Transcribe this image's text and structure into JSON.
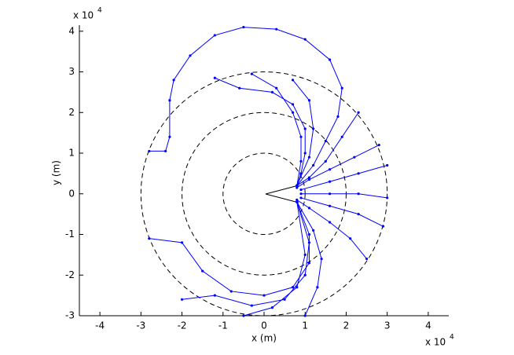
{
  "chart_data": {
    "type": "line",
    "x_label": "x (m)",
    "y_label": "y (m)",
    "x_multiplier": {
      "base": "x 10",
      "exponent": "4"
    },
    "y_multiplier": {
      "base": "x 10",
      "exponent": "4"
    },
    "xlim": [
      -45000,
      45000
    ],
    "ylim": [
      -30000,
      41500
    ],
    "xticks": [
      {
        "value": -40000,
        "label": "-4"
      },
      {
        "value": -30000,
        "label": "-3"
      },
      {
        "value": -20000,
        "label": "-2"
      },
      {
        "value": -10000,
        "label": "-1"
      },
      {
        "value": 0,
        "label": "0"
      },
      {
        "value": 10000,
        "label": "1"
      },
      {
        "value": 20000,
        "label": "2"
      },
      {
        "value": 30000,
        "label": "3"
      },
      {
        "value": 40000,
        "label": "4"
      }
    ],
    "yticks": [
      {
        "value": -30000,
        "label": "-3"
      },
      {
        "value": -20000,
        "label": "-2"
      },
      {
        "value": -10000,
        "label": "-1"
      },
      {
        "value": 0,
        "label": "0"
      },
      {
        "value": 10000,
        "label": "1"
      },
      {
        "value": 20000,
        "label": "2"
      },
      {
        "value": 30000,
        "label": "3"
      },
      {
        "value": 40000,
        "label": "4"
      }
    ],
    "reference_circles": [
      10000,
      20000,
      30000
    ],
    "color": "#0000ff",
    "series": [
      {
        "x": [
          -28000,
          -24000,
          -23000,
          -23000,
          -22000,
          -18000,
          -12000,
          -5000,
          3000,
          10000,
          16000,
          19000,
          18000,
          15000,
          12000,
          8000
        ],
        "y": [
          10500,
          10500,
          14000,
          23000,
          28000,
          34000,
          39000,
          41000,
          40500,
          38000,
          33000,
          26000,
          19000,
          13000,
          7000,
          2000
        ]
      },
      {
        "x": [
          -12000,
          -6000,
          2000,
          7000,
          10000,
          10000,
          9000,
          8000
        ],
        "y": [
          28500,
          26000,
          25000,
          22000,
          16000,
          10000,
          5000,
          2000
        ]
      },
      {
        "x": [
          -3000,
          3000,
          7000,
          9000,
          9000,
          8000
        ],
        "y": [
          29500,
          26000,
          20000,
          14000,
          8000,
          2000
        ]
      },
      {
        "x": [
          7000,
          11000,
          12000,
          11000,
          8000
        ],
        "y": [
          28000,
          23000,
          16000,
          9000,
          2000
        ]
      },
      {
        "x": [
          23000,
          19000,
          15000,
          11000,
          8000
        ],
        "y": [
          20000,
          14000,
          8000,
          4000,
          2000
        ]
      },
      {
        "x": [
          28000,
          22000,
          16000,
          11000,
          8000
        ],
        "y": [
          12000,
          9000,
          6000,
          3500,
          1500
        ]
      },
      {
        "x": [
          30000,
          23000,
          16000,
          9000
        ],
        "y": [
          7000,
          5000,
          3000,
          1000
        ]
      },
      {
        "x": [
          30000,
          23000,
          16000,
          9000
        ],
        "y": [
          -1000,
          0,
          0,
          0
        ]
      },
      {
        "x": [
          29000,
          23000,
          16000,
          9000
        ],
        "y": [
          -8000,
          -5000,
          -3000,
          -1000
        ]
      },
      {
        "x": [
          25000,
          21000,
          16000,
          11000,
          8000
        ],
        "y": [
          -16000,
          -11000,
          -7000,
          -3500,
          -1500
        ]
      },
      {
        "x": [
          10000,
          13000,
          14000,
          12000,
          8000
        ],
        "y": [
          -30000,
          -23000,
          -16000,
          -9000,
          -2000
        ]
      },
      {
        "x": [
          -28000,
          -20000,
          -15000,
          -8000,
          0,
          7000,
          11000,
          11000,
          8000
        ],
        "y": [
          -11000,
          -12000,
          -19000,
          -24000,
          -25000,
          -23000,
          -17000,
          -10000,
          -2000
        ]
      },
      {
        "x": [
          -20000,
          -12000,
          -3000,
          5000,
          10000,
          11000,
          8000
        ],
        "y": [
          -26000,
          -25000,
          -27500,
          -26000,
          -20000,
          -12000,
          -2000
        ]
      },
      {
        "x": [
          -5000,
          2000,
          8000,
          10000,
          8000
        ],
        "y": [
          -30000,
          -28000,
          -23000,
          -15000,
          -2000
        ]
      }
    ]
  }
}
